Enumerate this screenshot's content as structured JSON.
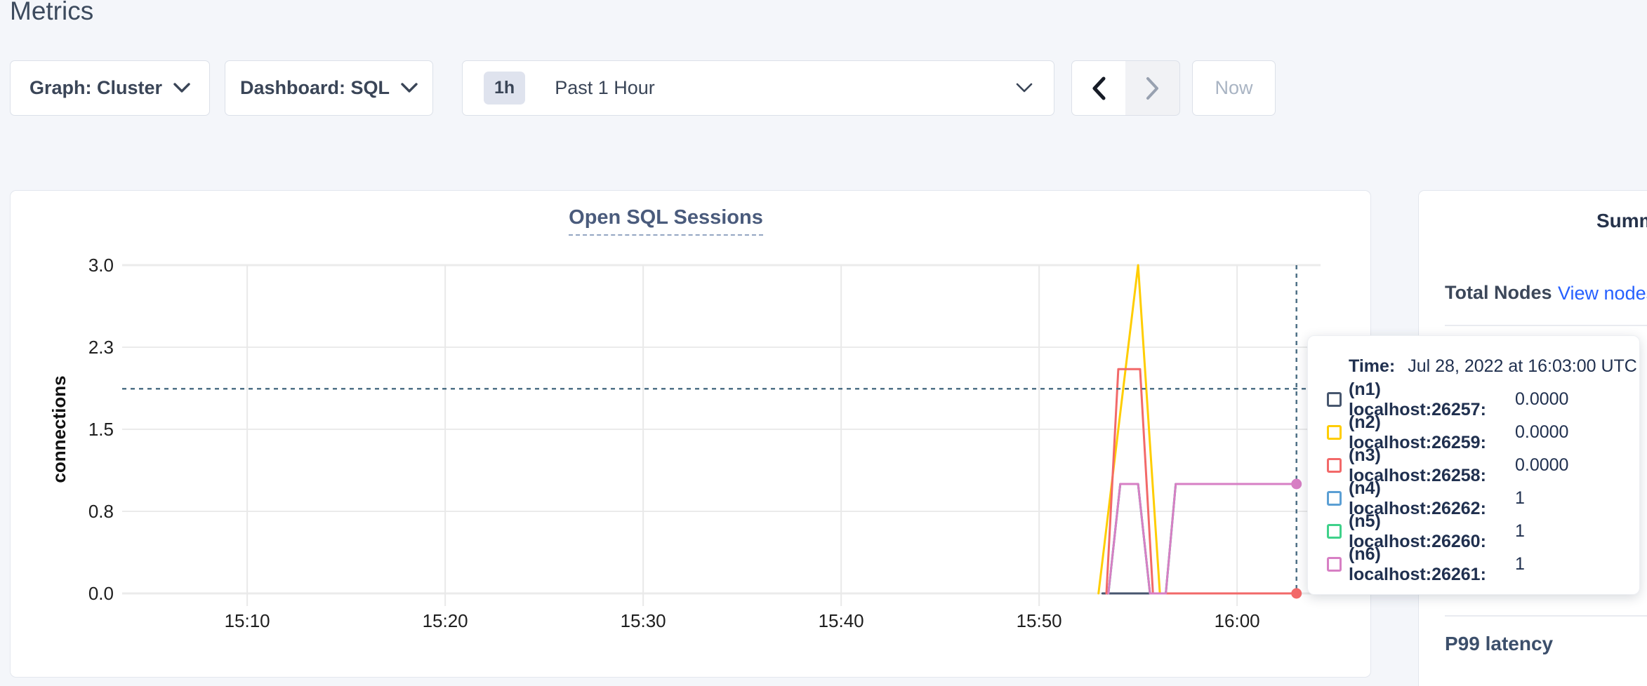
{
  "page": {
    "title": "Metrics"
  },
  "toolbar": {
    "graph_dropdown_label": "Graph: Cluster",
    "dashboard_dropdown_label": "Dashboard: SQL",
    "time_badge": "1h",
    "time_label": "Past 1 Hour",
    "now_label": "Now"
  },
  "chart_data": {
    "type": "line",
    "title": "Open SQL Sessions",
    "ylabel": "connections",
    "ylim": [
      0,
      3
    ],
    "grid": true,
    "legend_position": "hover-tooltip",
    "x_minutes_domain": [
      3.4,
      64.2
    ],
    "xticks": [
      {
        "t": 10,
        "label": "15:10"
      },
      {
        "t": 20,
        "label": "15:20"
      },
      {
        "t": 30,
        "label": "15:30"
      },
      {
        "t": 40,
        "label": "15:40"
      },
      {
        "t": 50,
        "label": "15:50"
      },
      {
        "t": 60,
        "label": "16:00"
      }
    ],
    "yticks": [
      {
        "v": 0,
        "label": "0.0"
      },
      {
        "v": 0.75,
        "label": "0.8"
      },
      {
        "v": 1.5,
        "label": "1.5"
      },
      {
        "v": 2.25,
        "label": "2.3"
      },
      {
        "v": 3,
        "label": "3.0"
      }
    ],
    "series": [
      {
        "name": "(n1) localhost:26257",
        "color": "#47566e",
        "points": [
          [
            53.2,
            0
          ],
          [
            63,
            0
          ]
        ]
      },
      {
        "name": "(n4) localhost:26262",
        "color": "#5b9fd4",
        "points": [
          [
            53.5,
            0
          ],
          [
            54.1,
            1
          ],
          [
            55,
            1
          ],
          [
            55.6,
            0
          ],
          [
            56.4,
            0
          ],
          [
            56.9,
            1
          ],
          [
            63,
            1
          ]
        ]
      },
      {
        "name": "(n5) localhost:26260",
        "color": "#3fd18a",
        "points": [
          [
            53.5,
            0
          ],
          [
            54.1,
            1
          ],
          [
            55,
            1
          ],
          [
            55.6,
            0
          ],
          [
            56.4,
            0
          ],
          [
            56.9,
            1
          ],
          [
            63,
            1
          ]
        ]
      },
      {
        "name": "(n2) localhost:26259",
        "color": "#ffcd00",
        "points": [
          [
            53,
            0
          ],
          [
            55,
            3
          ],
          [
            56.1,
            0
          ],
          [
            63,
            0
          ]
        ]
      },
      {
        "name": "(n3) localhost:26258",
        "color": "#f26969",
        "points": [
          [
            53.4,
            0
          ],
          [
            54,
            2.05
          ],
          [
            55.1,
            2.05
          ],
          [
            55.75,
            0
          ],
          [
            63,
            0
          ]
        ]
      },
      {
        "name": "(n6) localhost:26261",
        "color": "#d77fc4",
        "points": [
          [
            53.5,
            0
          ],
          [
            54.1,
            1
          ],
          [
            55,
            1
          ],
          [
            55.6,
            0
          ],
          [
            56.4,
            0
          ],
          [
            56.9,
            1
          ],
          [
            63,
            1
          ]
        ]
      }
    ],
    "crosshair": {
      "t": 63,
      "hover_time": "16:03:00 UTC",
      "h_value": 1.87,
      "color": "#4e7086",
      "dots": [
        {
          "color": "#f26969",
          "v": 0
        },
        {
          "color": "#d77fc4",
          "v": 1
        }
      ]
    }
  },
  "tooltip": {
    "time_label": "Time:",
    "time_value": "Jul 28, 2022 at 16:03:00 UTC",
    "rows": [
      {
        "color": "#47566e",
        "label": "(n1) localhost:26257:",
        "value": "0.0000"
      },
      {
        "color": "#ffcd00",
        "label": "(n2) localhost:26259:",
        "value": "0.0000"
      },
      {
        "color": "#f26969",
        "label": "(n3) localhost:26258:",
        "value": "0.0000"
      },
      {
        "color": "#5b9fd4",
        "label": "(n4) localhost:26262:",
        "value": "1"
      },
      {
        "color": "#3fd18a",
        "label": "(n5) localhost:26260:",
        "value": "1"
      },
      {
        "color": "#d77fc4",
        "label": "(n6) localhost:26261:",
        "value": "1"
      }
    ]
  },
  "sidebar": {
    "summary_title": "Summary",
    "total_nodes_label": "Total Nodes",
    "view_nodes_link": "View nodes",
    "p99_label": "P99 latency"
  }
}
